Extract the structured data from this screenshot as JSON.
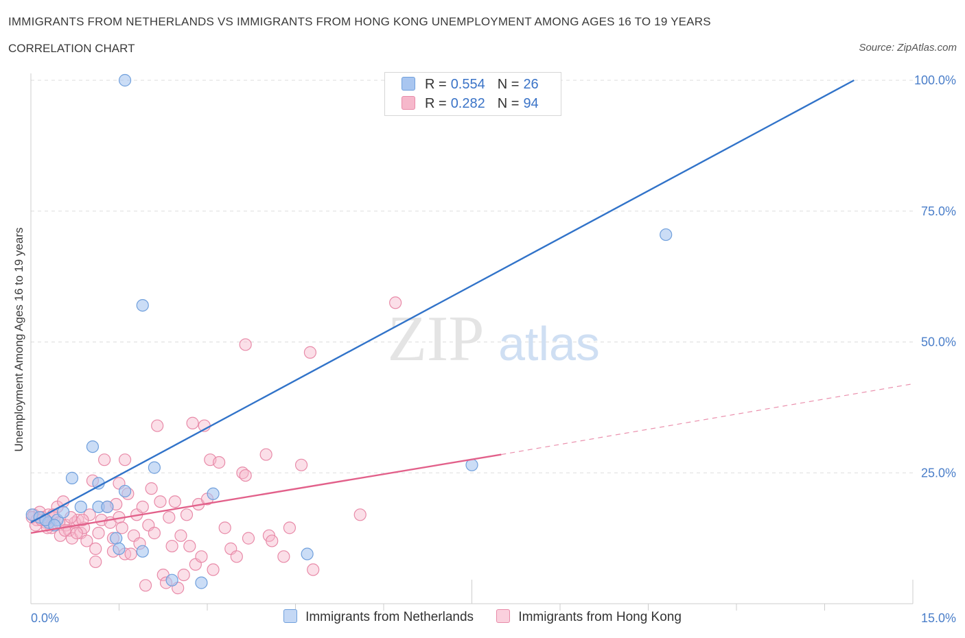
{
  "header": {
    "title": "IMMIGRANTS FROM NETHERLANDS VS IMMIGRANTS FROM HONG KONG UNEMPLOYMENT AMONG AGES 16 TO 19 YEARS",
    "subtitle": "CORRELATION CHART",
    "source": "Source: ZipAtlas.com"
  },
  "watermark": {
    "zip": "ZIP",
    "atlas": "atlas"
  },
  "legend": {
    "r_label": "R =",
    "n_label": "N =",
    "rows": [
      {
        "r": "0.554",
        "n": "26",
        "color": "#a9c6f0"
      },
      {
        "r": "0.282",
        "n": "94",
        "color": "#f6b8cb"
      }
    ]
  },
  "colors": {
    "blue_fill": "#a9c6f0",
    "blue_stroke": "#6f9fdc",
    "blue_line": "#3173c9",
    "pink_fill": "#f6b8cb",
    "pink_stroke": "#e88aa8",
    "pink_line": "#e2608a",
    "grid": "#dddddd",
    "tick_text": "#4a7ec9"
  },
  "chart_data": {
    "type": "scatter",
    "title": "IMMIGRANTS FROM NETHERLANDS VS IMMIGRANTS FROM HONG KONG UNEMPLOYMENT AMONG AGES 16 TO 19 YEARS",
    "xlabel": "",
    "ylabel": "Unemployment Among Ages 16 to 19 years",
    "xlim": [
      0,
      15
    ],
    "ylim": [
      0,
      100
    ],
    "x_tick_labels": [
      "0.0%",
      "15.0%"
    ],
    "y_ticks": [
      25,
      50,
      75,
      100
    ],
    "y_tick_labels": [
      "25.0%",
      "50.0%",
      "75.0%",
      "100.0%"
    ],
    "grid": true,
    "legend_position": "top-center",
    "series": [
      {
        "name": "Immigrants from Netherlands",
        "r": 0.554,
        "n": 26,
        "points": [
          [
            0.02,
            17.0
          ],
          [
            0.15,
            16.5
          ],
          [
            0.3,
            15.5
          ],
          [
            0.45,
            16.0
          ],
          [
            0.55,
            17.5
          ],
          [
            0.85,
            18.5
          ],
          [
            1.05,
            30.0
          ],
          [
            0.7,
            24.0
          ],
          [
            1.15,
            18.5
          ],
          [
            1.15,
            23.0
          ],
          [
            1.3,
            18.5
          ],
          [
            1.45,
            12.5
          ],
          [
            1.5,
            10.5
          ],
          [
            1.6,
            21.5
          ],
          [
            1.9,
            10.0
          ],
          [
            1.6,
            100.0
          ],
          [
            1.9,
            57.0
          ],
          [
            2.1,
            26.0
          ],
          [
            2.4,
            4.5
          ],
          [
            2.9,
            4.0
          ],
          [
            3.1,
            21.0
          ],
          [
            4.7,
            9.5
          ],
          [
            7.5,
            26.5
          ],
          [
            10.8,
            70.5
          ],
          [
            0.25,
            16.0
          ],
          [
            0.4,
            15.0
          ]
        ],
        "trend": {
          "x": [
            0.0,
            14.0
          ],
          "y": [
            15.5,
            100.0
          ]
        }
      },
      {
        "name": "Immigrants from Hong Kong",
        "r": 0.282,
        "n": 94,
        "points": [
          [
            0.05,
            17.0
          ],
          [
            0.1,
            16.0
          ],
          [
            0.15,
            17.5
          ],
          [
            0.2,
            16.5
          ],
          [
            0.25,
            15.5
          ],
          [
            0.3,
            17.0
          ],
          [
            0.35,
            14.5
          ],
          [
            0.4,
            16.5
          ],
          [
            0.45,
            18.5
          ],
          [
            0.5,
            13.0
          ],
          [
            0.55,
            19.5
          ],
          [
            0.6,
            15.0
          ],
          [
            0.65,
            14.0
          ],
          [
            0.7,
            12.5
          ],
          [
            0.75,
            15.5
          ],
          [
            0.8,
            16.0
          ],
          [
            0.85,
            13.5
          ],
          [
            0.9,
            14.5
          ],
          [
            0.95,
            12.0
          ],
          [
            1.0,
            17.0
          ],
          [
            1.05,
            23.5
          ],
          [
            1.1,
            10.5
          ],
          [
            1.1,
            8.0
          ],
          [
            1.15,
            13.5
          ],
          [
            1.2,
            16.0
          ],
          [
            1.25,
            27.5
          ],
          [
            1.3,
            18.5
          ],
          [
            1.35,
            15.5
          ],
          [
            1.4,
            12.5
          ],
          [
            1.4,
            10.0
          ],
          [
            1.45,
            19.0
          ],
          [
            1.5,
            16.5
          ],
          [
            1.5,
            23.0
          ],
          [
            1.55,
            14.5
          ],
          [
            1.6,
            9.5
          ],
          [
            1.6,
            27.5
          ],
          [
            1.65,
            21.0
          ],
          [
            1.7,
            9.5
          ],
          [
            1.75,
            13.0
          ],
          [
            1.8,
            17.0
          ],
          [
            1.85,
            11.5
          ],
          [
            1.9,
            18.5
          ],
          [
            1.95,
            3.5
          ],
          [
            2.0,
            15.0
          ],
          [
            2.05,
            22.0
          ],
          [
            2.1,
            13.5
          ],
          [
            2.15,
            34.0
          ],
          [
            2.2,
            19.5
          ],
          [
            2.25,
            5.5
          ],
          [
            2.3,
            4.0
          ],
          [
            2.35,
            16.5
          ],
          [
            2.4,
            11.0
          ],
          [
            2.45,
            19.5
          ],
          [
            2.5,
            3.0
          ],
          [
            2.55,
            13.0
          ],
          [
            2.6,
            5.5
          ],
          [
            2.65,
            17.0
          ],
          [
            2.7,
            11.0
          ],
          [
            2.75,
            34.5
          ],
          [
            2.8,
            7.5
          ],
          [
            2.85,
            19.0
          ],
          [
            2.9,
            9.0
          ],
          [
            2.95,
            34.0
          ],
          [
            3.0,
            20.0
          ],
          [
            3.05,
            27.5
          ],
          [
            3.1,
            6.5
          ],
          [
            3.2,
            27.0
          ],
          [
            3.3,
            14.5
          ],
          [
            3.4,
            10.5
          ],
          [
            3.5,
            9.0
          ],
          [
            3.6,
            25.0
          ],
          [
            3.65,
            24.5
          ],
          [
            3.7,
            12.5
          ],
          [
            4.0,
            28.5
          ],
          [
            4.05,
            13.0
          ],
          [
            4.1,
            12.0
          ],
          [
            4.3,
            9.0
          ],
          [
            4.4,
            14.5
          ],
          [
            4.6,
            26.5
          ],
          [
            4.8,
            6.5
          ],
          [
            3.65,
            49.5
          ],
          [
            4.75,
            48.0
          ],
          [
            6.2,
            57.5
          ],
          [
            5.6,
            17.0
          ],
          [
            0.02,
            16.5
          ],
          [
            0.08,
            15.0
          ],
          [
            0.18,
            16.0
          ],
          [
            0.28,
            14.5
          ],
          [
            0.38,
            17.0
          ],
          [
            0.48,
            15.5
          ],
          [
            0.58,
            14.0
          ],
          [
            0.68,
            16.5
          ],
          [
            0.78,
            13.5
          ],
          [
            0.88,
            16.0
          ]
        ],
        "trend_solid": {
          "x": [
            0.0,
            8.0
          ],
          "y": [
            13.5,
            28.5
          ]
        },
        "trend_dashed": {
          "x": [
            8.0,
            15.0
          ],
          "y": [
            28.5,
            42.0
          ]
        }
      }
    ]
  }
}
